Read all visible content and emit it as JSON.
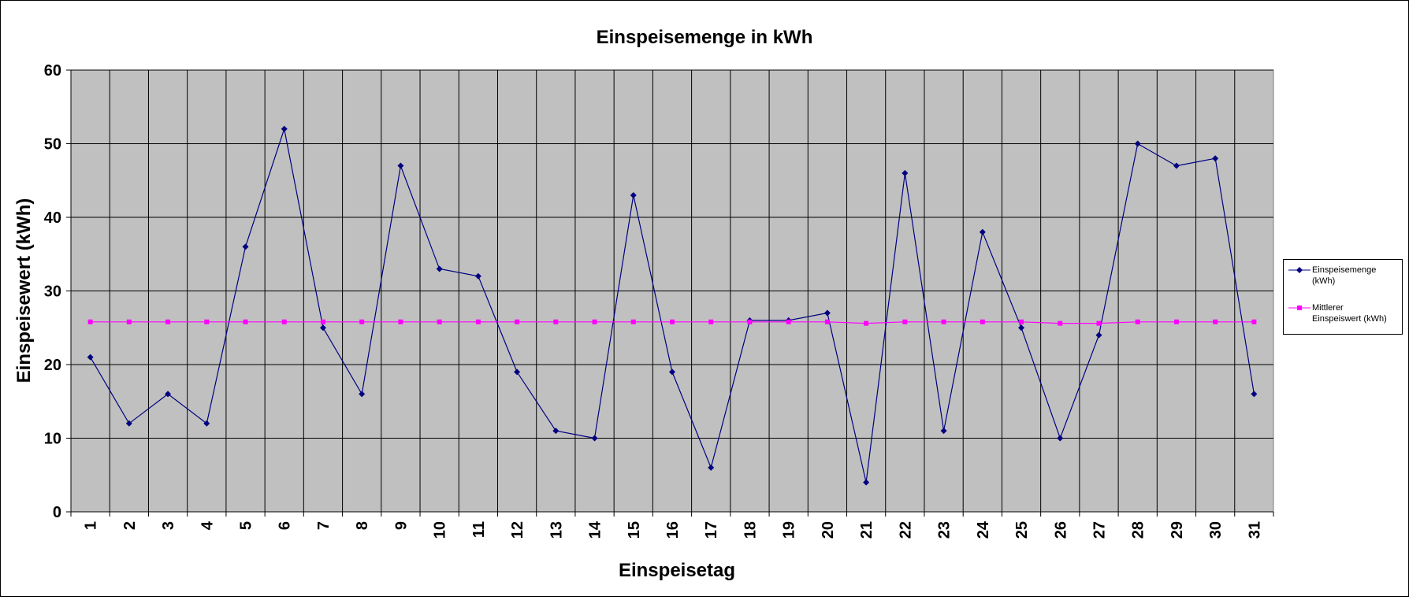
{
  "chart_data": {
    "type": "line",
    "title": "Einspeisemenge in kWh",
    "xlabel": "Einspeisetag",
    "ylabel": "Einspeisewert  (kWh)",
    "ylim": [
      0,
      60
    ],
    "yticks": [
      "0",
      "10",
      "20",
      "30",
      "40",
      "50",
      "60"
    ],
    "grid": true,
    "legend_position": "right",
    "categories": [
      "1",
      "2",
      "3",
      "4",
      "5",
      "6",
      "7",
      "8",
      "9",
      "10",
      "11",
      "12",
      "13",
      "14",
      "15",
      "16",
      "17",
      "18",
      "19",
      "20",
      "21",
      "22",
      "23",
      "24",
      "25",
      "26",
      "27",
      "28",
      "29",
      "30",
      "31"
    ],
    "series": [
      {
        "name": "Einspeisemenge (kWh)",
        "color": "#000080",
        "marker": "diamond",
        "values": [
          21,
          12,
          16,
          12,
          36,
          52,
          25,
          16,
          47,
          33,
          32,
          19,
          11,
          10,
          43,
          19,
          6,
          26,
          26,
          27,
          4,
          46,
          11,
          38,
          25,
          10,
          24,
          50,
          47,
          48,
          16
        ]
      },
      {
        "name": "Mittlerer Einspeiswert (kWh)",
        "color": "#ff00ff",
        "marker": "square",
        "values": [
          25.8,
          25.8,
          25.8,
          25.8,
          25.8,
          25.8,
          25.8,
          25.8,
          25.8,
          25.8,
          25.8,
          25.8,
          25.8,
          25.8,
          25.8,
          25.8,
          25.8,
          25.8,
          25.8,
          25.8,
          25.6,
          25.8,
          25.8,
          25.8,
          25.8,
          25.6,
          25.6,
          25.8,
          25.8,
          25.8,
          25.8
        ]
      }
    ],
    "plot_background": "#c0c0c0"
  },
  "legend": {
    "entry1_line1": "Einspeisemenge",
    "entry1_line2": "(kWh)",
    "entry2_line1": "Mittlerer",
    "entry2_line2": "Einspeiswert (kWh)"
  }
}
